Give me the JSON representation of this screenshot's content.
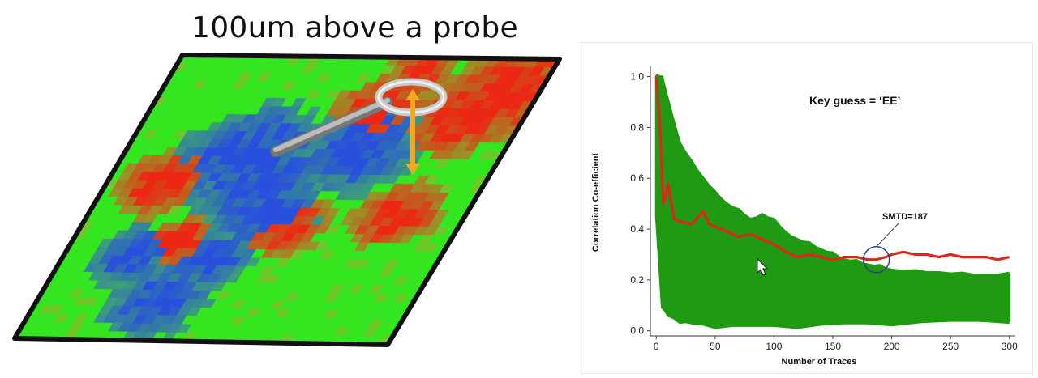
{
  "slide": {
    "title": "100um above a probe"
  },
  "colors": {
    "heat_low": "#2f55d4",
    "heat_mid": "#33e61f",
    "heat_high": "#ee2a14",
    "probe": "#9a9a9a",
    "arrow": "#f2a91f",
    "trace_green": "#1f9a12",
    "trace_red": "#e0251b",
    "marker": "#2b3f8a"
  },
  "chart_data": {
    "type": "line",
    "title": "",
    "xlabel": "Number of Traces",
    "ylabel": "Correlation Co-efficient",
    "xlim": [
      -5,
      305
    ],
    "ylim": [
      -0.02,
      1.04
    ],
    "xticks": [
      0,
      50,
      100,
      150,
      200,
      250,
      300
    ],
    "yticks": [
      0.0,
      0.2,
      0.4,
      0.6,
      0.8,
      1.0
    ],
    "grid": false,
    "annotations": [
      {
        "text": "Key guess = ‘EE’",
        "x": 140,
        "y": 0.88
      },
      {
        "text": "SMTD=187",
        "x": 197,
        "y": 0.44
      }
    ],
    "marker": {
      "label": "SMTD",
      "x": 187,
      "y": 0.28
    },
    "series": [
      {
        "color": "#e0251b",
        "role": "correct key",
        "x": [
          0,
          3,
          6,
          10,
          15,
          20,
          30,
          40,
          45,
          50,
          60,
          70,
          80,
          90,
          100,
          110,
          120,
          130,
          140,
          150,
          160,
          170,
          180,
          187,
          195,
          200,
          210,
          220,
          230,
          240,
          250,
          260,
          270,
          280,
          290,
          300
        ],
        "y": [
          1.0,
          0.82,
          0.5,
          0.58,
          0.44,
          0.43,
          0.42,
          0.47,
          0.42,
          0.41,
          0.39,
          0.37,
          0.38,
          0.36,
          0.34,
          0.31,
          0.29,
          0.3,
          0.29,
          0.28,
          0.29,
          0.29,
          0.28,
          0.28,
          0.29,
          0.3,
          0.31,
          0.3,
          0.3,
          0.29,
          0.3,
          0.29,
          0.29,
          0.29,
          0.28,
          0.29
        ]
      },
      {
        "color": "#1f9a12",
        "role": "wrong key guesses (envelope)",
        "upper": {
          "x": [
            0,
            5,
            10,
            20,
            30,
            40,
            50,
            60,
            70,
            80,
            90,
            100,
            110,
            120,
            130,
            140,
            150,
            160,
            170,
            180,
            190,
            200,
            220,
            240,
            260,
            280,
            300
          ],
          "y": [
            1.0,
            1.0,
            0.9,
            0.74,
            0.66,
            0.6,
            0.54,
            0.5,
            0.47,
            0.44,
            0.45,
            0.44,
            0.38,
            0.36,
            0.34,
            0.32,
            0.3,
            0.28,
            0.27,
            0.26,
            0.25,
            0.24,
            0.23,
            0.23,
            0.22,
            0.22,
            0.22
          ]
        },
        "lower": {
          "x": [
            0,
            5,
            10,
            20,
            30,
            50,
            80,
            120,
            160,
            200,
            250,
            300
          ],
          "y": [
            0.45,
            0.1,
            0.06,
            0.04,
            0.03,
            0.02,
            0.02,
            0.02,
            0.03,
            0.03,
            0.04,
            0.04
          ]
        }
      }
    ]
  }
}
